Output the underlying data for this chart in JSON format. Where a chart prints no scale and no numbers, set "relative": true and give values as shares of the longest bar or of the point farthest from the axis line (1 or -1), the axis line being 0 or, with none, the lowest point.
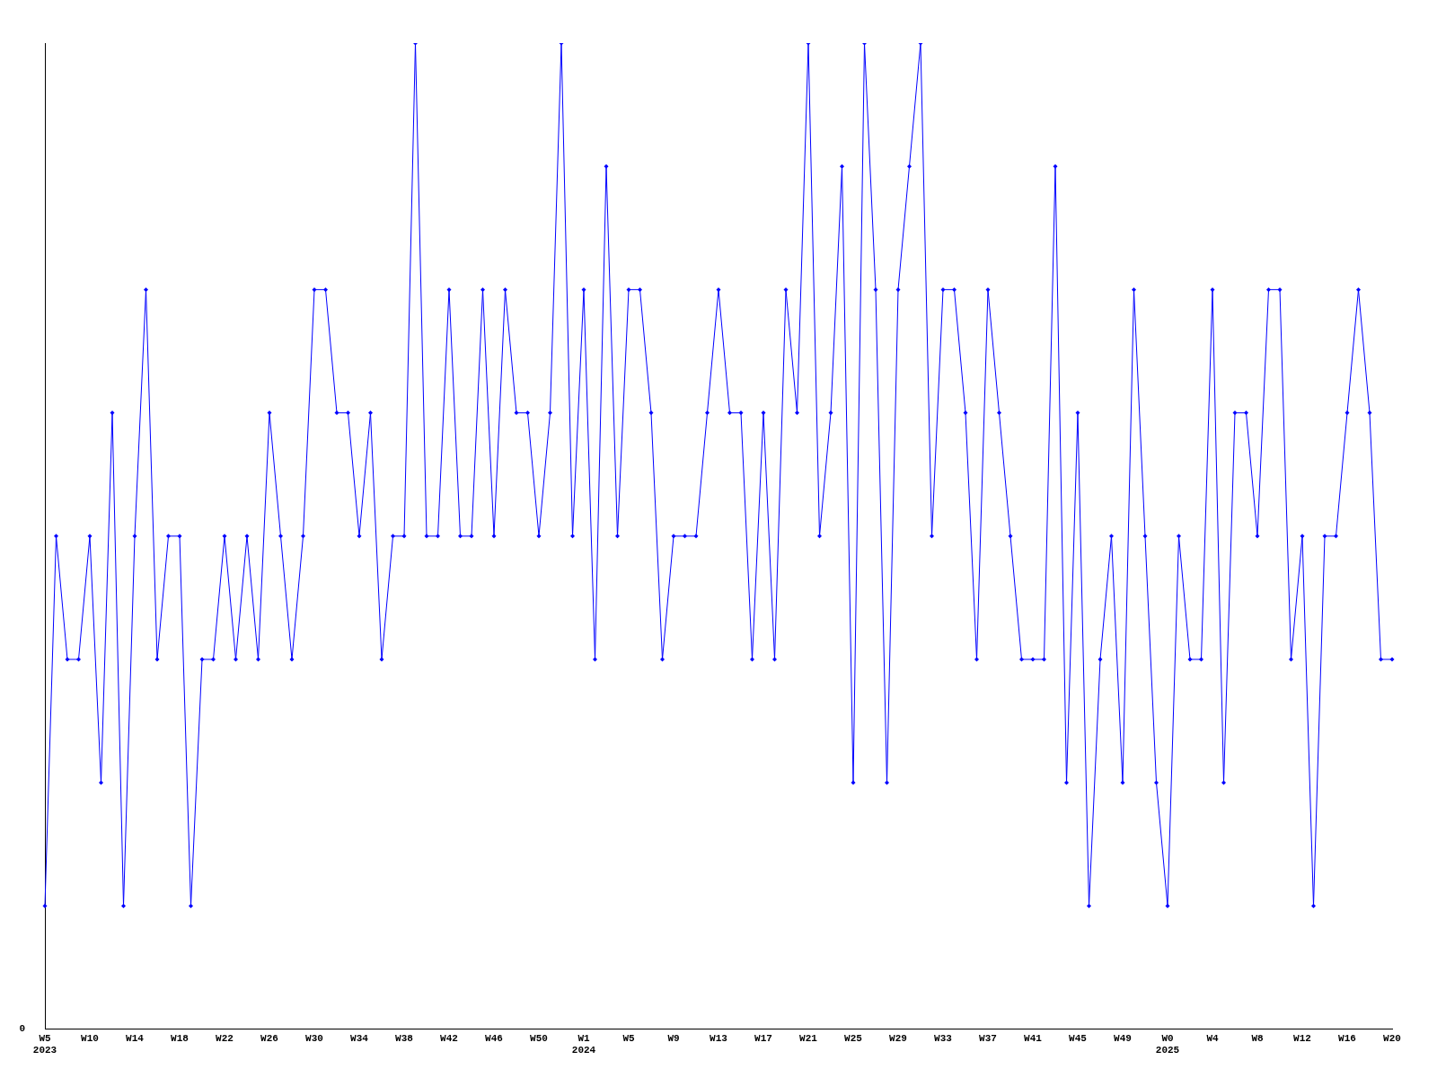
{
  "chart_data": {
    "type": "line",
    "relative": true,
    "categories": [
      "W5\n2023",
      null,
      null,
      null,
      "W10",
      null,
      null,
      null,
      "W14",
      null,
      null,
      null,
      "W18",
      null,
      null,
      null,
      "W22",
      null,
      null,
      null,
      "W26",
      null,
      null,
      null,
      "W30",
      null,
      null,
      null,
      "W34",
      null,
      null,
      null,
      "W38",
      null,
      null,
      null,
      "W42",
      null,
      null,
      null,
      "W46",
      null,
      null,
      null,
      "W50",
      null,
      null,
      null,
      "W1\n2024",
      null,
      null,
      null,
      "W5",
      null,
      null,
      null,
      "W9",
      null,
      null,
      null,
      "W13",
      null,
      null,
      null,
      "W17",
      null,
      null,
      null,
      "W21",
      null,
      null,
      null,
      "W25",
      null,
      null,
      null,
      "W29",
      null,
      null,
      null,
      "W33",
      null,
      null,
      null,
      "W37",
      null,
      null,
      null,
      "W41",
      null,
      null,
      null,
      "W45",
      null,
      null,
      null,
      "W49",
      null,
      null,
      null,
      "W0\n2025",
      null,
      null,
      null,
      "W4",
      null,
      null,
      null,
      "W8",
      null,
      null,
      null,
      "W12",
      null,
      null,
      null,
      "W16",
      null,
      null,
      null,
      "W20"
    ],
    "series": [
      {
        "color": "#0000ff",
        "values": [
          0.125,
          0.5,
          0.375,
          0.375,
          0.5,
          0.25,
          0.625,
          0.125,
          0.5,
          0.75,
          0.375,
          0.5,
          0.5,
          0.125,
          0.375,
          0.375,
          0.5,
          0.375,
          0.5,
          0.375,
          0.625,
          0.5,
          0.375,
          0.5,
          0.75,
          0.75,
          0.625,
          0.625,
          0.5,
          0.625,
          0.375,
          0.5,
          0.5,
          1,
          0.5,
          0.5,
          0.75,
          0.5,
          0.5,
          0.75,
          0.5,
          0.75,
          0.625,
          0.625,
          0.5,
          0.625,
          1,
          0.5,
          0.75,
          0.375,
          0.875,
          0.5,
          0.75,
          0.75,
          0.625,
          0.375,
          0.5,
          0.5,
          0.5,
          0.625,
          0.75,
          0.625,
          0.625,
          0.375,
          0.625,
          0.375,
          0.75,
          0.625,
          1,
          0.5,
          0.625,
          0.875,
          0.25,
          1,
          0.75,
          0.25,
          0.75,
          0.875,
          1,
          0.5,
          0.75,
          0.75,
          0.625,
          0.375,
          0.75,
          0.625,
          0.5,
          0.375,
          0.375,
          0.375,
          0.875,
          0.25,
          0.625,
          0.125,
          0.375,
          0.5,
          0.25,
          0.75,
          0.5,
          0.25,
          0.125,
          0.5,
          0.375,
          0.375,
          0.75,
          0.25,
          0.625,
          0.625,
          0.5,
          0.75,
          0.75,
          0.375,
          0.5,
          0.125,
          0.5,
          0.5,
          0.625,
          0.75,
          0.625,
          0.375,
          0.375
        ]
      }
    ],
    "marker": "diamond",
    "grid": false,
    "legend": false,
    "annotations": [
      "0"
    ]
  }
}
